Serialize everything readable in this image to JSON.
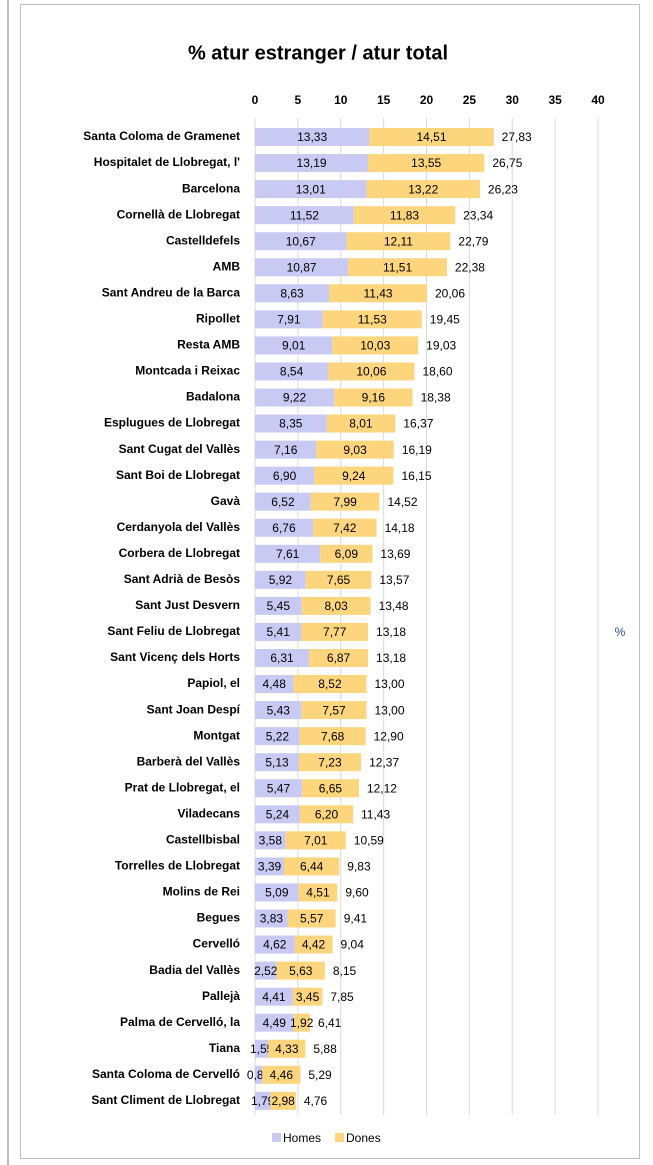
{
  "chart_data": {
    "type": "stacked_barh",
    "title": "% atur estranger / atur total",
    "axis_label": "%",
    "categories": [
      "Santa Coloma de Gramenet",
      "Hospitalet de Llobregat, l'",
      "Barcelona",
      "Cornellà de Llobregat",
      "Castelldefels",
      "AMB",
      "Sant Andreu de la Barca",
      "Ripollet",
      "Resta AMB",
      "Montcada i Reixac",
      "Badalona",
      "Esplugues de Llobregat",
      "Sant Cugat del Vallès",
      "Sant Boi de Llobregat",
      "Gavà",
      "Cerdanyola del Vallès",
      "Corbera de Llobregat",
      "Sant Adrià de Besòs",
      "Sant Just Desvern",
      "Sant Feliu de Llobregat",
      "Sant Vicenç dels Horts",
      "Papiol, el",
      "Sant Joan Despí",
      "Montgat",
      "Barberà del Vallès",
      "Prat de Llobregat, el",
      "Viladecans",
      "Castellbisbal",
      "Torrelles de Llobregat",
      "Molins de Rei",
      "Begues",
      "Cervelló",
      "Badia del Vallès",
      "Pallejà",
      "Palma de Cervelló, la",
      "Tiana",
      "Santa Coloma de Cervelló",
      "Sant Climent de Llobregat"
    ],
    "series": [
      {
        "name": "Homes",
        "color": "#c8caf4",
        "values": [
          13.33,
          13.19,
          13.01,
          11.52,
          10.67,
          10.87,
          8.63,
          7.91,
          9.01,
          8.54,
          9.22,
          8.35,
          7.16,
          6.9,
          6.52,
          6.76,
          7.61,
          5.92,
          5.45,
          5.41,
          6.31,
          4.48,
          5.43,
          5.22,
          5.13,
          5.47,
          5.24,
          3.58,
          3.39,
          5.09,
          3.83,
          4.62,
          2.52,
          4.41,
          4.49,
          1.55,
          0.84,
          1.79
        ],
        "value_labels": [
          "13,33",
          "13,19",
          "13,01",
          "11,52",
          "10,67",
          "10,87",
          "8,63",
          "7,91",
          "9,01",
          "8,54",
          "9,22",
          "8,35",
          "7,16",
          "6,90",
          "6,52",
          "6,76",
          "7,61",
          "5,92",
          "5,45",
          "5,41",
          "6,31",
          "4,48",
          "5,43",
          "5,22",
          "5,13",
          "5,47",
          "5,24",
          "3,58",
          "3,39",
          "5,09",
          "3,83",
          "4,62",
          "2,52",
          "4,41",
          "4,49",
          "1,55",
          "0,84",
          "1,79"
        ]
      },
      {
        "name": "Dones",
        "color": "#fdd57c",
        "values": [
          14.51,
          13.55,
          13.22,
          11.83,
          12.11,
          11.51,
          11.43,
          11.53,
          10.03,
          10.06,
          9.16,
          8.01,
          9.03,
          9.24,
          7.99,
          7.42,
          6.09,
          7.65,
          8.03,
          7.77,
          6.87,
          8.52,
          7.57,
          7.68,
          7.23,
          6.65,
          6.2,
          7.01,
          6.44,
          4.51,
          5.57,
          4.42,
          5.63,
          3.45,
          1.92,
          4.33,
          4.46,
          2.98
        ],
        "value_labels": [
          "14,51",
          "13,55",
          "13,22",
          "11,83",
          "12,11",
          "11,51",
          "11,43",
          "11,53",
          "10,03",
          "10,06",
          "9,16",
          "8,01",
          "9,03",
          "9,24",
          "7,99",
          "7,42",
          "6,09",
          "7,65",
          "8,03",
          "7,77",
          "6,87",
          "8,52",
          "7,57",
          "7,68",
          "7,23",
          "6,65",
          "6,20",
          "7,01",
          "6,44",
          "4,51",
          "5,57",
          "4,42",
          "5,63",
          "3,45",
          "1,92",
          "4,33",
          "4,46",
          "2,98"
        ]
      }
    ],
    "totals": [
      27.83,
      26.75,
      26.23,
      23.34,
      22.79,
      22.38,
      20.06,
      19.45,
      19.03,
      18.6,
      18.38,
      16.37,
      16.19,
      16.15,
      14.52,
      14.18,
      13.69,
      13.57,
      13.48,
      13.18,
      13.18,
      13.0,
      13.0,
      12.9,
      12.37,
      12.12,
      11.43,
      10.59,
      9.83,
      9.6,
      9.41,
      9.04,
      8.15,
      7.85,
      6.41,
      5.88,
      5.29,
      4.76
    ],
    "total_labels": [
      "27,83",
      "26,75",
      "26,23",
      "23,34",
      "22,79",
      "22,38",
      "20,06",
      "19,45",
      "19,03",
      "18,60",
      "18,38",
      "16,37",
      "16,19",
      "16,15",
      "14,52",
      "14,18",
      "13,69",
      "13,57",
      "13,48",
      "13,18",
      "13,18",
      "13,00",
      "13,00",
      "12,90",
      "12,37",
      "12,12",
      "11,43",
      "10,59",
      "9,83",
      "9,60",
      "9,41",
      "9,04",
      "8,15",
      "7,85",
      "6,41",
      "5,88",
      "5,29",
      "4,76"
    ],
    "xlim": [
      0,
      40
    ],
    "xticks": [
      0,
      5,
      10,
      15,
      20,
      25,
      30,
      35,
      40
    ],
    "grid": true,
    "legend": "bottom"
  }
}
